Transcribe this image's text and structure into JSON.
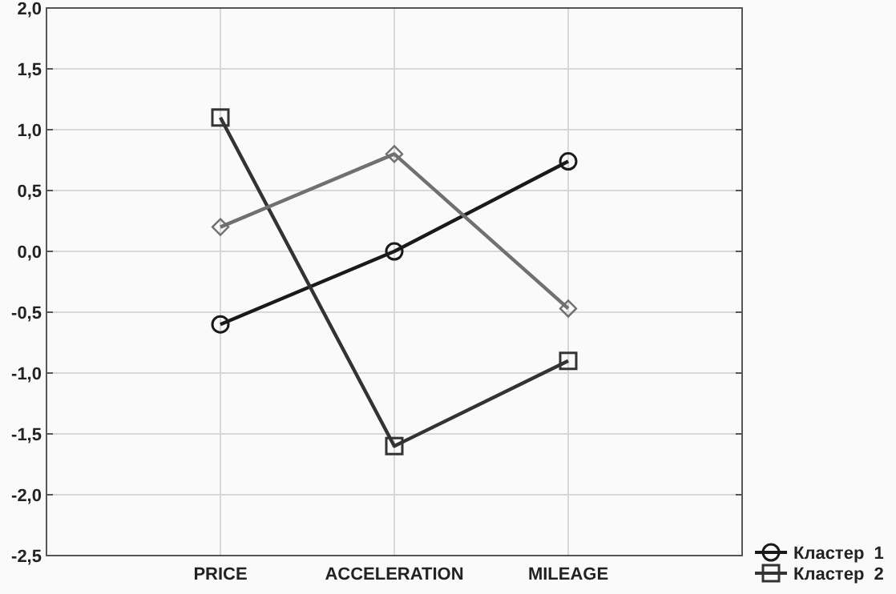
{
  "chart_data": {
    "type": "line",
    "categories": [
      "PRICE",
      "ACCELERATION",
      "MILEAGE"
    ],
    "series": [
      {
        "name": "Кластер  1",
        "color": "#1a1a1a",
        "marker": "circle",
        "values": [
          -0.6,
          0.0,
          0.74
        ]
      },
      {
        "name": "Кластер  2",
        "color": "#333333",
        "marker": "square",
        "values": [
          1.1,
          -1.6,
          -0.9
        ]
      },
      {
        "color": "#707070",
        "marker": "diamond",
        "values": [
          0.2,
          0.8,
          -0.47
        ]
      }
    ],
    "ylim": [
      -2.5,
      2.0
    ],
    "yticks": [
      {
        "value": -2.5,
        "label": "-2,5"
      },
      {
        "value": -2.0,
        "label": "-2,0"
      },
      {
        "value": -1.5,
        "label": "-1,5"
      },
      {
        "value": -1.0,
        "label": "-1,0"
      },
      {
        "value": -0.5,
        "label": "-0,5"
      },
      {
        "value": 0,
        "label": "0,0"
      },
      {
        "value": 0.5,
        "label": "0,5"
      },
      {
        "value": 1.0,
        "label": "1,0"
      },
      {
        "value": 1.5,
        "label": "1,5"
      },
      {
        "value": 2.0,
        "label": "2,0"
      }
    ],
    "grid": true,
    "legend": "bottom right",
    "line_style": "solid"
  }
}
